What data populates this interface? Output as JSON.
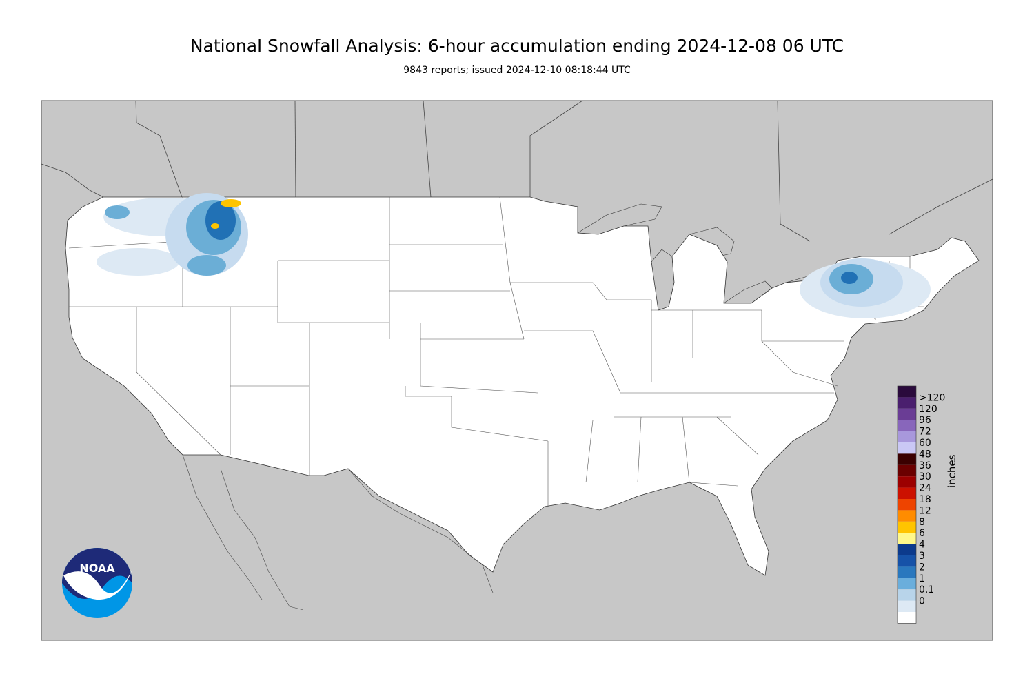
{
  "title": "National Snowfall Analysis: 6-hour accumulation ending 2024-12-08 06 UTC",
  "subtitle": "9843 reports; issued 2024-12-10 08:18:44 UTC",
  "logo": {
    "text": "NOAA",
    "icon": "noaa-logo-icon"
  },
  "legend": {
    "unit": "inches",
    "bins": [
      {
        "label": ">120",
        "color": "#2a0a3c"
      },
      {
        "label": "120",
        "color": "#4a1f6e"
      },
      {
        "label": "96",
        "color": "#6a3d95"
      },
      {
        "label": "72",
        "color": "#8866bb"
      },
      {
        "label": "60",
        "color": "#a898dc"
      },
      {
        "label": "48",
        "color": "#cac8f5"
      },
      {
        "label": "36",
        "color": "#3a0000"
      },
      {
        "label": "30",
        "color": "#6b0000"
      },
      {
        "label": "24",
        "color": "#9c0000"
      },
      {
        "label": "18",
        "color": "#cc1100"
      },
      {
        "label": "12",
        "color": "#ee4400"
      },
      {
        "label": "8",
        "color": "#ff8c00"
      },
      {
        "label": "6",
        "color": "#ffc400"
      },
      {
        "label": "4",
        "color": "#fff88a"
      },
      {
        "label": "3",
        "color": "#0c3a8c"
      },
      {
        "label": "2",
        "color": "#1652a8"
      },
      {
        "label": "1",
        "color": "#2a78be"
      },
      {
        "label": "0.1",
        "color": "#6aaedc"
      },
      {
        "label": "0",
        "color": "#b8d4ea"
      }
    ],
    "extra_colors": [
      "#dde9f4",
      "#ffffff"
    ]
  },
  "colors": {
    "ocean_land": "#c7c7c7",
    "analysis_area": "#ffffff",
    "snow_light": "#c6dbef",
    "snow_med": "#6baed6",
    "snow_heavy": "#2171b5"
  }
}
